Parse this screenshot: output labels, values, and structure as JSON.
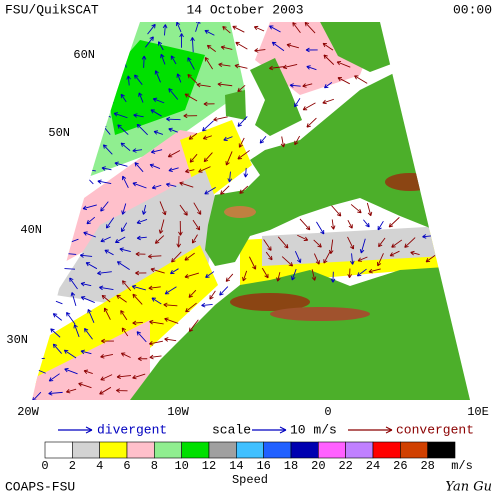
{
  "header": {
    "left": "FSU/QuikSCAT",
    "center": "14 October 2003",
    "right": "00:00"
  },
  "map": {
    "lat_labels": [
      "60N",
      "50N",
      "40N",
      "30N"
    ],
    "lon_labels": [
      "20W",
      "10W",
      "0",
      "10E"
    ]
  },
  "legend": {
    "divergent": "divergent",
    "scale": "scale",
    "scale_value": "10 m/s",
    "convergent": "convergent"
  },
  "colorbar": {
    "labels": [
      0,
      2,
      4,
      6,
      8,
      10,
      12,
      14,
      16,
      18,
      20,
      22,
      24,
      26,
      28
    ],
    "unit": "m/s",
    "title": "Speed",
    "colors": [
      "#ffffff",
      "#d3d3d3",
      "#ffff00",
      "#ffc0cb",
      "#90ee90",
      "#00e000",
      "#a0a0a0",
      "#40c0ff",
      "#2060ff",
      "#0000b0",
      "#ff60ff",
      "#c080ff",
      "#ff0000",
      "#d04000",
      "#000000"
    ]
  },
  "footer": {
    "left": "COAPS-FSU",
    "right": "Yan Gu"
  }
}
